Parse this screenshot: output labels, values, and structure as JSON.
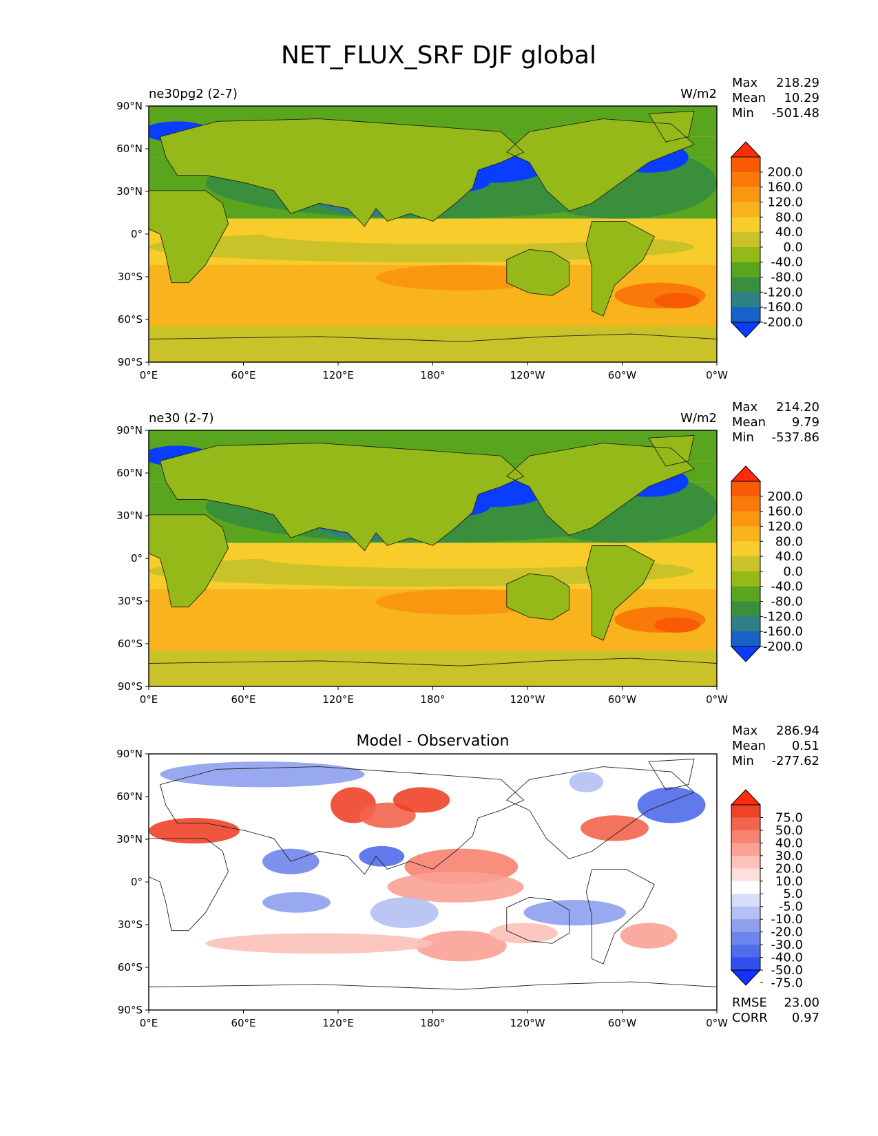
{
  "figure_title": "NET_FLUX_SRF DJF global",
  "xticks": [
    "0°E",
    "60°E",
    "120°E",
    "180°",
    "120°W",
    "60°W",
    "0°W"
  ],
  "yticks": [
    "90°N",
    "60°N",
    "30°N",
    "0°",
    "30°S",
    "60°S",
    "90°S"
  ],
  "colors": {
    "main_scale": [
      "#0a3dff",
      "#1762c9",
      "#2e7f86",
      "#3a8f3c",
      "#5aa51e",
      "#96b91a",
      "#c9c228",
      "#f7cc2b",
      "#f9b31d",
      "#f99810",
      "#f97a08",
      "#f95a04",
      "#ff2b0d"
    ],
    "diff_scale": [
      "#1432ff",
      "#2e50f0",
      "#4f6cea",
      "#6e86ec",
      "#8ea0ee",
      "#b4c0f3",
      "#d8def9",
      "#ffffff",
      "#fde0dc",
      "#fcc1b8",
      "#f9a194",
      "#f78370",
      "#f3644d",
      "#ee4329",
      "#ff2b0d"
    ],
    "coast": "#202020"
  },
  "panels": [
    {
      "left_title": "ne30pg2 (2-7)",
      "right_title": "W/m2",
      "center_title": "",
      "stats": [
        {
          "label": "Max",
          "value": "218.29"
        },
        {
          "label": "Mean",
          "value": "10.29"
        },
        {
          "label": "Min",
          "value": "-501.48"
        }
      ],
      "colorbar_labels": [
        "200.0",
        "160.0",
        "120.0",
        "80.0",
        "40.0",
        "0.0",
        "-40.0",
        "-80.0",
        "-120.0",
        "-160.0",
        "-200.0"
      ],
      "extra_stats": []
    },
    {
      "left_title": "ne30 (2-7)",
      "right_title": "W/m2",
      "center_title": "",
      "stats": [
        {
          "label": "Max",
          "value": "214.20"
        },
        {
          "label": "Mean",
          "value": "9.79"
        },
        {
          "label": "Min",
          "value": "-537.86"
        }
      ],
      "colorbar_labels": [
        "200.0",
        "160.0",
        "120.0",
        "80.0",
        "40.0",
        "0.0",
        "-40.0",
        "-80.0",
        "-120.0",
        "-160.0",
        "-200.0"
      ],
      "extra_stats": []
    },
    {
      "left_title": "",
      "right_title": "",
      "center_title": "Model - Observation",
      "stats": [
        {
          "label": "Max",
          "value": "286.94"
        },
        {
          "label": "Mean",
          "value": "0.51"
        },
        {
          "label": "Min",
          "value": "-277.62"
        }
      ],
      "colorbar_labels": [
        "75.0",
        "50.0",
        "40.0",
        "30.0",
        "20.0",
        "10.0",
        "5.0",
        "-5.0",
        "-10.0",
        "-20.0",
        "-30.0",
        "-40.0",
        "-50.0",
        "-75.0"
      ],
      "extra_stats": [
        {
          "label": "RMSE",
          "value": "23.00"
        },
        {
          "label": "CORR",
          "value": "0.97"
        }
      ]
    }
  ],
  "chart_data": [
    {
      "type": "heatmap",
      "title": "ne30pg2 (2-7)",
      "units": "W/m2",
      "x": [
        "0°E",
        "60°E",
        "120°E",
        "180°",
        "120°W",
        "60°W",
        "0°W"
      ],
      "y": [
        "90°N",
        "60°N",
        "30°N",
        "0°",
        "30°S",
        "60°S",
        "90°S"
      ],
      "levels": [
        -200,
        -160,
        -120,
        -80,
        -40,
        0,
        40,
        80,
        120,
        160,
        200
      ],
      "max": 218.29,
      "mean": 10.29,
      "min": -501.48
    },
    {
      "type": "heatmap",
      "title": "ne30 (2-7)",
      "units": "W/m2",
      "x": [
        "0°E",
        "60°E",
        "120°E",
        "180°",
        "120°W",
        "60°W",
        "0°W"
      ],
      "y": [
        "90°N",
        "60°N",
        "30°N",
        "0°",
        "30°S",
        "60°S",
        "90°S"
      ],
      "levels": [
        -200,
        -160,
        -120,
        -80,
        -40,
        0,
        40,
        80,
        120,
        160,
        200
      ],
      "max": 214.2,
      "mean": 9.79,
      "min": -537.86
    },
    {
      "type": "heatmap",
      "title": "Model - Observation",
      "x": [
        "0°E",
        "60°E",
        "120°E",
        "180°",
        "120°W",
        "60°W",
        "0°W"
      ],
      "y": [
        "90°N",
        "60°N",
        "30°N",
        "0°",
        "30°S",
        "60°S",
        "90°S"
      ],
      "levels": [
        -75,
        -50,
        -40,
        -30,
        -20,
        -10,
        -5,
        5,
        10,
        20,
        30,
        40,
        50,
        75
      ],
      "max": 286.94,
      "mean": 0.51,
      "min": -277.62,
      "rmse": 23.0,
      "corr": 0.97
    }
  ]
}
